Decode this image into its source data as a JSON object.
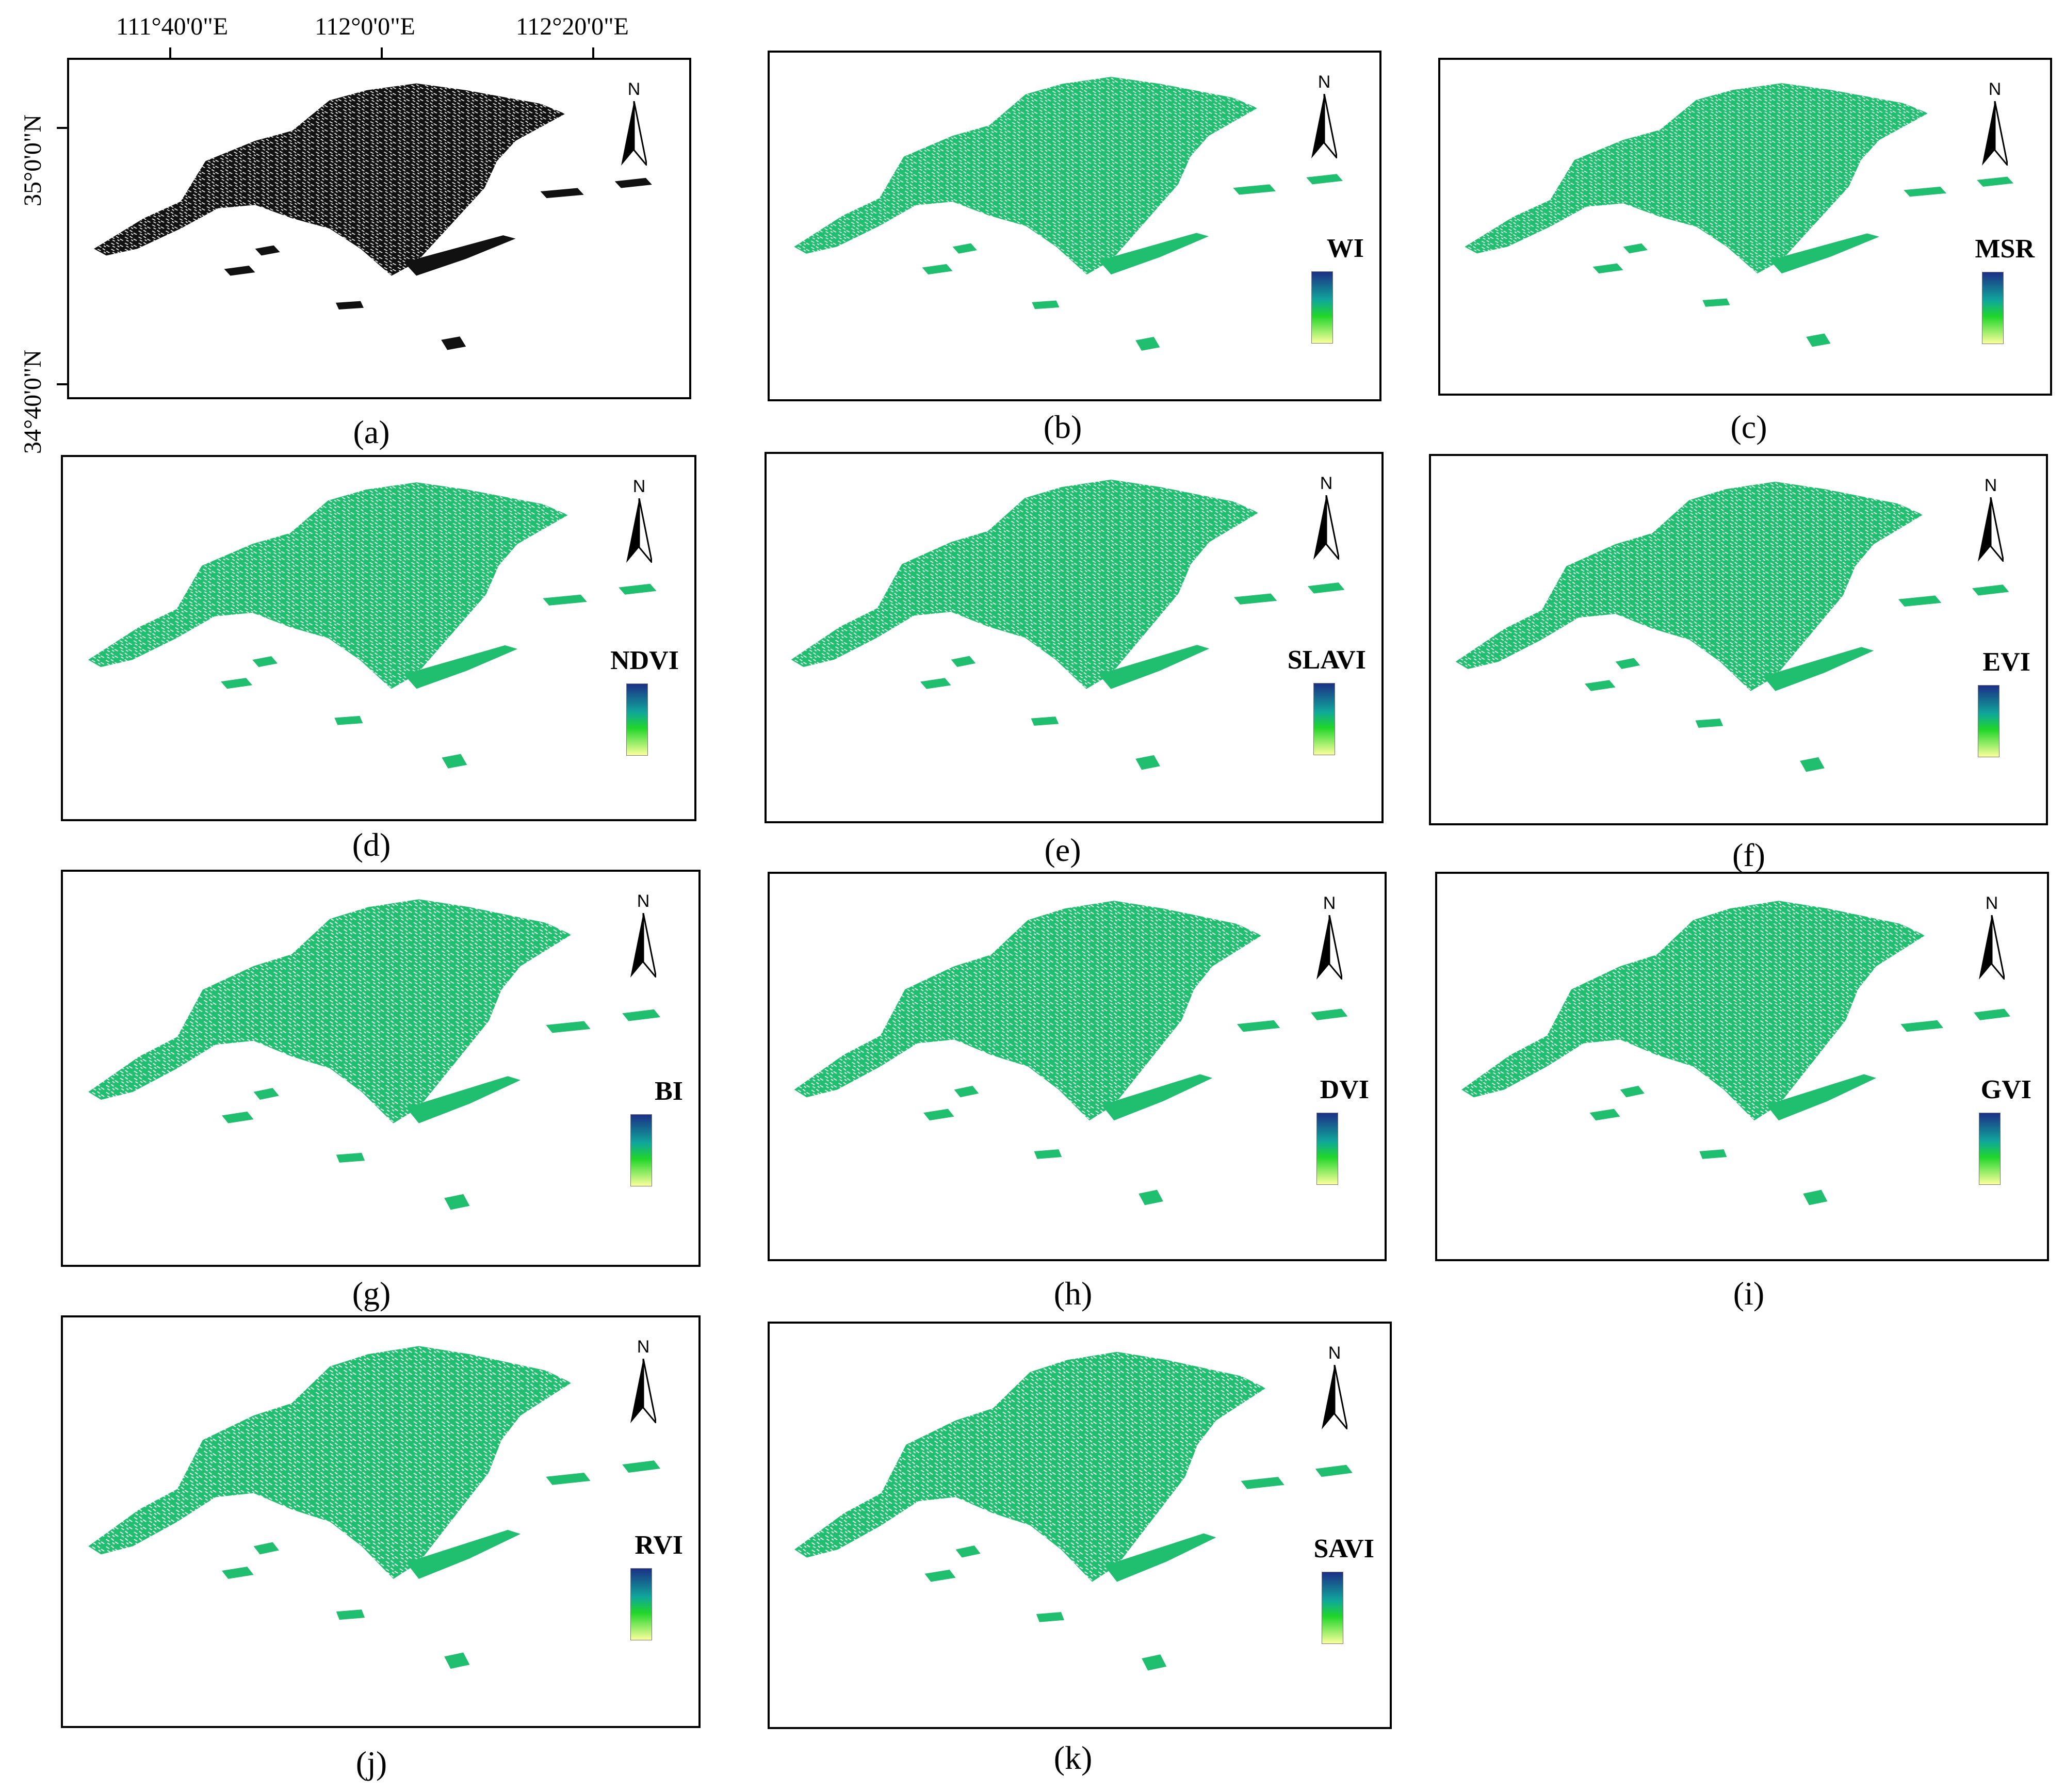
{
  "colors": {
    "vegetation": "#1fbf6f",
    "binary": "#111111",
    "legend_top": "#1c2f86",
    "legend_mid": "#0fa89a",
    "legend_green": "#20d62a",
    "legend_bottom": "#fbff9c"
  },
  "axes": {
    "lon_labels": [
      "111°40'0\"E",
      "112°0'0\"E",
      "112°20'0\"E"
    ],
    "lat_labels": [
      "35°0'0\"N",
      "34°40'0\"N"
    ]
  },
  "north_label": "N",
  "panels": [
    {
      "id": "a",
      "caption": "(a)",
      "legend": "",
      "fill": "binary"
    },
    {
      "id": "b",
      "caption": "(b)",
      "legend": "WI",
      "fill": "vegetation"
    },
    {
      "id": "c",
      "caption": "(c)",
      "legend": "MSR",
      "fill": "vegetation"
    },
    {
      "id": "d",
      "caption": "(d)",
      "legend": "NDVI",
      "fill": "vegetation"
    },
    {
      "id": "e",
      "caption": "(e)",
      "legend": "SLAVI",
      "fill": "vegetation"
    },
    {
      "id": "f",
      "caption": "(f)",
      "legend": "EVI",
      "fill": "vegetation"
    },
    {
      "id": "g",
      "caption": "(g)",
      "legend": "BI",
      "fill": "vegetation"
    },
    {
      "id": "h",
      "caption": "(h)",
      "legend": "DVI",
      "fill": "vegetation"
    },
    {
      "id": "i",
      "caption": "(i)",
      "legend": "GVI",
      "fill": "vegetation"
    },
    {
      "id": "j",
      "caption": "(j)",
      "legend": "RVI",
      "fill": "vegetation"
    },
    {
      "id": "k",
      "caption": "(k)",
      "legend": "SAVI",
      "fill": "vegetation"
    }
  ]
}
